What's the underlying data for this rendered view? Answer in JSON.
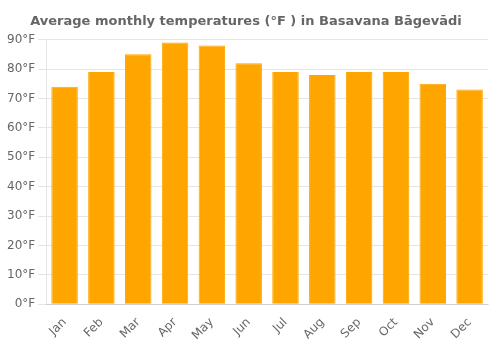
{
  "chart_data": {
    "type": "bar",
    "title": "Average monthly temperatures (°F ) in Basavana Bāgevādi",
    "categories": [
      "Jan",
      "Feb",
      "Mar",
      "Apr",
      "May",
      "Jun",
      "Jul",
      "Aug",
      "Sep",
      "Oct",
      "Nov",
      "Dec"
    ],
    "values": [
      74,
      79,
      85,
      89,
      88,
      82,
      79,
      78,
      79,
      79,
      75,
      73
    ],
    "color": "#FFA500",
    "ylim": [
      0,
      90
    ],
    "yticks": [
      {
        "value": 0,
        "label": "0°F"
      },
      {
        "value": 10,
        "label": "10°F"
      },
      {
        "value": 20,
        "label": "20°F"
      },
      {
        "value": 30,
        "label": "30°F"
      },
      {
        "value": 40,
        "label": "40°F"
      },
      {
        "value": 50,
        "label": "50°F"
      },
      {
        "value": 60,
        "label": "60°F"
      },
      {
        "value": 70,
        "label": "70°F"
      },
      {
        "value": 80,
        "label": "80°F"
      },
      {
        "value": 90,
        "label": "90°F"
      }
    ],
    "grid": true
  }
}
